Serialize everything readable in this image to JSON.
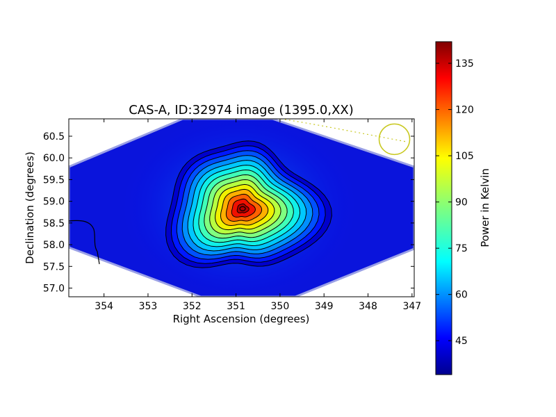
{
  "chart_data": {
    "type": "heatmap",
    "title": "CAS-A, ID:32974 image (1395.0,XX)",
    "xlabel": "Right Ascension (degrees)",
    "ylabel": "Declination (degrees)",
    "xlim": [
      354.8,
      346.95
    ],
    "ylim": [
      56.8,
      60.9
    ],
    "x_ticks": [
      354,
      353,
      352,
      351,
      350,
      349,
      348,
      347
    ],
    "y_ticks": [
      57.0,
      57.5,
      58.0,
      58.5,
      59.0,
      59.5,
      60.0,
      60.5
    ],
    "x_tick_labels": [
      "354",
      "353",
      "352",
      "351",
      "350",
      "349",
      "348",
      "347"
    ],
    "y_tick_labels": [
      "57.0",
      "57.5",
      "58.0",
      "58.5",
      "59.0",
      "59.5",
      "60.0",
      "60.5"
    ],
    "colorscale": "jet",
    "grid": false,
    "peak": {
      "ra": 350.85,
      "dec": 58.83
    },
    "colorbar": {
      "label": "Power in Kelvin",
      "range": [
        34,
        142
      ],
      "ticks": [
        45,
        60,
        75,
        90,
        105,
        120,
        135
      ],
      "tick_labels": [
        "45",
        "60",
        "75",
        "90",
        "105",
        "120",
        "135"
      ]
    },
    "contour_count": 14,
    "annotation_circle": {
      "ra": 347.4,
      "dec": 60.43,
      "color": "#c8c820"
    }
  }
}
